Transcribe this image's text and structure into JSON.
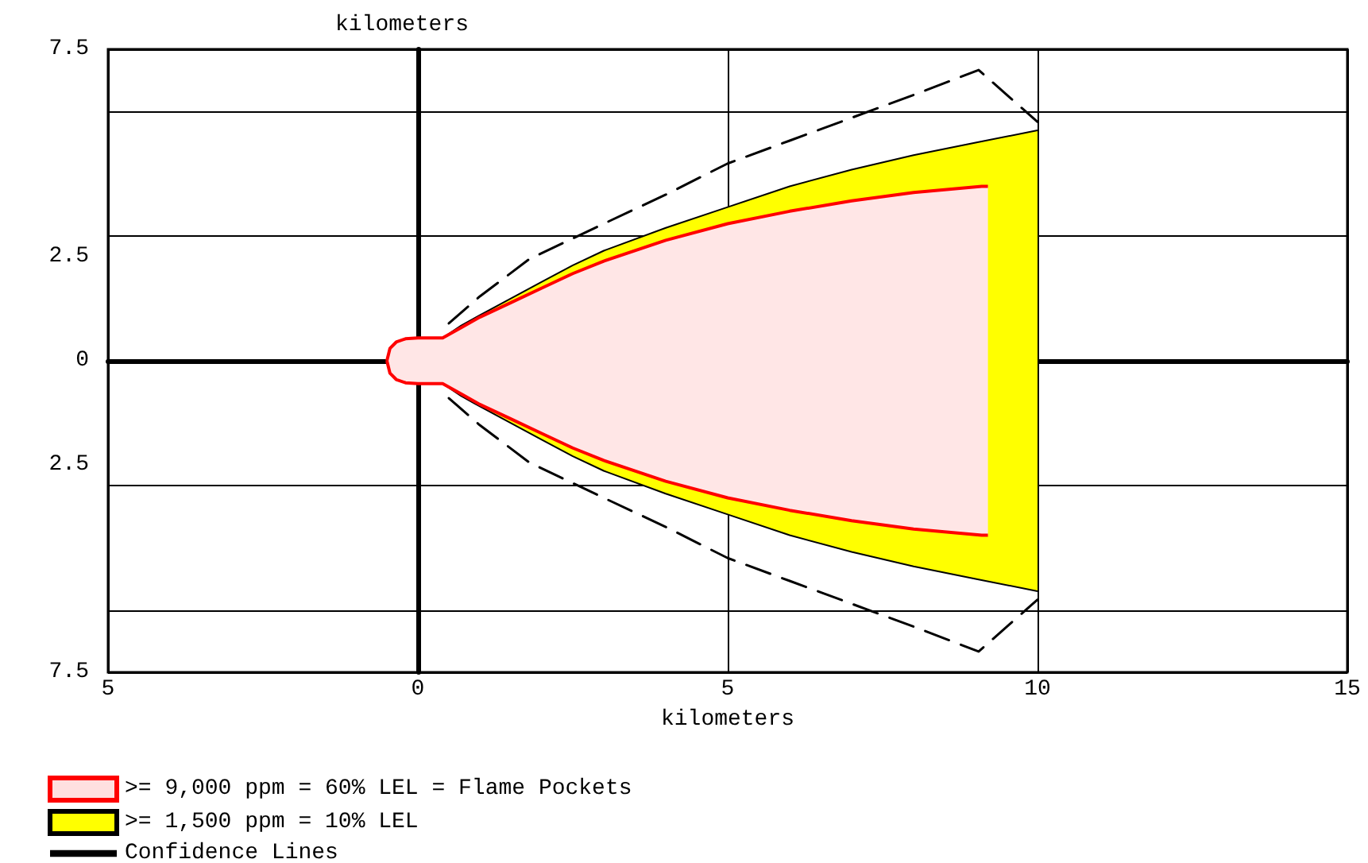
{
  "chart_data": {
    "type": "area",
    "xlabel": "kilometers",
    "ylabel": "kilometers",
    "xlim": [
      -5,
      15
    ],
    "xticks": [
      {
        "value": -5,
        "label": "5"
      },
      0,
      5,
      10,
      15
    ],
    "ylim": [
      -7.5,
      7.5
    ],
    "yticks": [
      {
        "value": -7.5,
        "label": "7.5"
      },
      {
        "value": -2.5,
        "label": "2.5"
      },
      0,
      2.5,
      7.5
    ],
    "grid": true,
    "legend": "bottom left",
    "series": [
      {
        "name": ">= 9,000 ppm = 60% LEL = Flame Pockets",
        "color": "#ff0000",
        "x": [
          -0.5,
          -0.45,
          -0.35,
          -0.2,
          0,
          0.4,
          0.7,
          1,
          1.5,
          2,
          2.5,
          3,
          4,
          5,
          6,
          7,
          8,
          9.1,
          9.2
        ],
        "values": [
          0,
          0.3,
          0.45,
          0.53,
          0.55,
          0.55,
          0.8,
          1.05,
          1.4,
          1.75,
          2.1,
          2.4,
          2.9,
          3.3,
          3.6,
          3.85,
          4.05,
          4.2,
          4.2
        ]
      },
      {
        "color": "#ff0000",
        "x": [
          -0.5,
          -0.45,
          -0.35,
          -0.2,
          0,
          0.4,
          0.7,
          1,
          1.5,
          2,
          2.5,
          3,
          4,
          5,
          6,
          7,
          8,
          9.1,
          9.2
        ],
        "values": [
          0,
          -0.3,
          -0.45,
          -0.53,
          -0.55,
          -0.55,
          -0.8,
          -1.05,
          -1.4,
          -1.75,
          -2.1,
          -2.4,
          -2.9,
          -3.3,
          -3.6,
          -3.85,
          -4.05,
          -4.2,
          -4.2
        ]
      },
      {
        "name": ">= 1,500 ppm = 10% LEL",
        "color": "#ffff00",
        "x": [
          -0.5,
          -0.45,
          -0.35,
          -0.2,
          0,
          0.4,
          0.7,
          1,
          1.5,
          2,
          2.5,
          3,
          4,
          5,
          6,
          7,
          8,
          9,
          10
        ],
        "values": [
          0,
          0.3,
          0.45,
          0.53,
          0.55,
          0.55,
          0.85,
          1.1,
          1.5,
          1.9,
          2.3,
          2.65,
          3.2,
          3.7,
          4.2,
          4.6,
          4.95,
          5.25,
          5.55
        ]
      },
      {
        "color": "#ffff00",
        "x": [
          -0.5,
          -0.45,
          -0.35,
          -0.2,
          0,
          0.4,
          0.7,
          1,
          1.5,
          2,
          2.5,
          3,
          4,
          5,
          6,
          7,
          8,
          9,
          10
        ],
        "values": [
          0,
          -0.3,
          -0.45,
          -0.53,
          -0.55,
          -0.55,
          -0.85,
          -1.1,
          -1.5,
          -1.9,
          -2.3,
          -2.65,
          -3.2,
          -3.7,
          -4.2,
          -4.6,
          -4.95,
          -5.25,
          -5.55
        ]
      },
      {
        "name": "Confidence Lines",
        "type": "line",
        "line_style": "dashed",
        "color": "#000000",
        "x": [
          0.5,
          1,
          1.8,
          3,
          4,
          5,
          6,
          7,
          8,
          9.05,
          10
        ],
        "values": [
          0.9,
          1.55,
          2.45,
          3.3,
          4.0,
          4.75,
          5.3,
          5.85,
          6.4,
          7.0,
          5.75
        ]
      },
      {
        "type": "line",
        "line_style": "dashed",
        "color": "#000000",
        "x": [
          0.5,
          1,
          1.8,
          3,
          4,
          5,
          6,
          7,
          8,
          9.05,
          10
        ],
        "values": [
          -0.9,
          -1.55,
          -2.45,
          -3.3,
          -4.0,
          -4.75,
          -5.3,
          -5.85,
          -6.4,
          -7.0,
          -5.75
        ]
      }
    ]
  }
}
